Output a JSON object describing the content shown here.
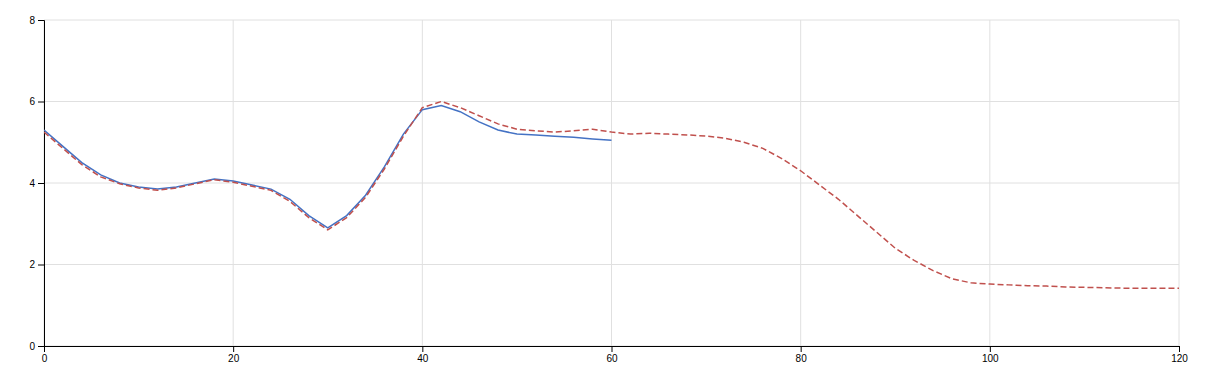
{
  "chart_data": {
    "type": "line",
    "xlim": [
      0,
      120
    ],
    "xticks": [
      0,
      20,
      40,
      60,
      80,
      100,
      120
    ],
    "ylim": [
      0,
      8
    ],
    "yticks": [
      0,
      2,
      4,
      6,
      8
    ],
    "grid": true,
    "series": [
      {
        "color": "#4472c4",
        "line_style": "solid",
        "x": [
          0,
          2,
          4,
          6,
          8,
          10,
          12,
          14,
          16,
          18,
          20,
          22,
          24,
          26,
          28,
          30,
          32,
          34,
          36,
          38,
          40,
          42,
          44,
          46,
          48,
          50,
          52,
          54,
          56,
          58,
          60
        ],
        "values": [
          5.3,
          4.9,
          4.5,
          4.2,
          4.0,
          3.9,
          3.85,
          3.9,
          4.0,
          4.1,
          4.05,
          3.95,
          3.85,
          3.6,
          3.2,
          2.9,
          3.2,
          3.7,
          4.4,
          5.2,
          5.8,
          5.9,
          5.75,
          5.5,
          5.3,
          5.2,
          5.18,
          5.15,
          5.12,
          5.08,
          5.05
        ]
      },
      {
        "color": "#c0504d",
        "line_style": "dashed",
        "x": [
          0,
          2,
          4,
          6,
          8,
          10,
          12,
          14,
          16,
          18,
          20,
          22,
          24,
          26,
          28,
          30,
          32,
          34,
          36,
          38,
          40,
          42,
          44,
          46,
          48,
          50,
          52,
          54,
          56,
          58,
          60,
          62,
          64,
          66,
          68,
          70,
          72,
          74,
          76,
          78,
          80,
          82,
          84,
          86,
          88,
          90,
          92,
          94,
          96,
          98,
          100,
          102,
          104,
          106,
          108,
          110,
          112,
          114,
          116,
          118,
          120
        ],
        "values": [
          5.25,
          4.85,
          4.45,
          4.15,
          3.98,
          3.88,
          3.82,
          3.88,
          3.98,
          4.08,
          4.02,
          3.92,
          3.82,
          3.55,
          3.15,
          2.85,
          3.15,
          3.65,
          4.35,
          5.15,
          5.85,
          6.0,
          5.85,
          5.65,
          5.45,
          5.32,
          5.28,
          5.25,
          5.28,
          5.32,
          5.25,
          5.2,
          5.22,
          5.2,
          5.18,
          5.15,
          5.1,
          5.0,
          4.85,
          4.6,
          4.3,
          3.95,
          3.6,
          3.2,
          2.8,
          2.4,
          2.1,
          1.85,
          1.65,
          1.55,
          1.52,
          1.5,
          1.48,
          1.47,
          1.45,
          1.44,
          1.43,
          1.42,
          1.42,
          1.42,
          1.42
        ]
      }
    ]
  }
}
